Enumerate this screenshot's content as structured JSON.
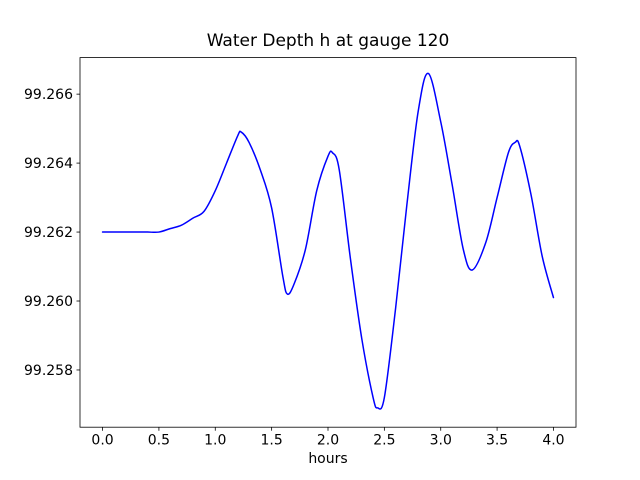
{
  "figure": {
    "background": "#ffffff"
  },
  "chart_data": {
    "type": "line",
    "title": "Water Depth h at gauge 120",
    "xlabel": "hours",
    "ylabel": "",
    "series_name": "water depth h",
    "line_color": "#0000ff",
    "line_width": 1.5,
    "grid": false,
    "legend_position": "none",
    "xlim": [
      -0.2,
      4.2
    ],
    "ylim": [
      99.25634,
      99.26706
    ],
    "xticks": [
      0.0,
      0.5,
      1.0,
      1.5,
      2.0,
      2.5,
      3.0,
      3.5,
      4.0
    ],
    "xtick_labels": [
      "0.0",
      "0.5",
      "1.0",
      "1.5",
      "2.0",
      "2.5",
      "3.0",
      "3.5",
      "4.0"
    ],
    "yticks": [
      99.258,
      99.26,
      99.262,
      99.264,
      99.266
    ],
    "ytick_labels": [
      "99.258",
      "99.260",
      "99.262",
      "99.264",
      "99.266"
    ],
    "x": [
      0.0,
      0.1,
      0.2,
      0.3,
      0.4,
      0.5,
      0.6,
      0.7,
      0.8,
      0.9,
      1.0,
      1.1,
      1.2,
      1.23,
      1.3,
      1.4,
      1.5,
      1.6,
      1.64,
      1.7,
      1.8,
      1.9,
      2.0,
      2.04,
      2.1,
      2.2,
      2.3,
      2.4,
      2.44,
      2.5,
      2.6,
      2.7,
      2.8,
      2.89,
      3.0,
      3.1,
      3.2,
      3.28,
      3.4,
      3.5,
      3.6,
      3.66,
      3.7,
      3.8,
      3.9,
      4.0
    ],
    "y": [
      99.262,
      99.262,
      99.262,
      99.262,
      99.262,
      99.262,
      99.2621,
      99.2622,
      99.2624,
      99.2626,
      99.2632,
      99.264,
      99.2648,
      99.2649,
      99.2646,
      99.2638,
      99.2627,
      99.2607,
      99.2602,
      99.2605,
      99.2615,
      99.2632,
      99.2642,
      99.2643,
      99.2638,
      99.2612,
      99.2589,
      99.2572,
      99.2569,
      99.2572,
      99.2598,
      99.2628,
      99.2655,
      99.2666,
      99.2652,
      99.2634,
      99.2615,
      99.2609,
      99.2617,
      99.263,
      99.2643,
      99.2646,
      99.2645,
      99.2631,
      99.2613,
      99.2601
    ],
    "axis_color": "#000000",
    "tick_length": 3.5
  }
}
